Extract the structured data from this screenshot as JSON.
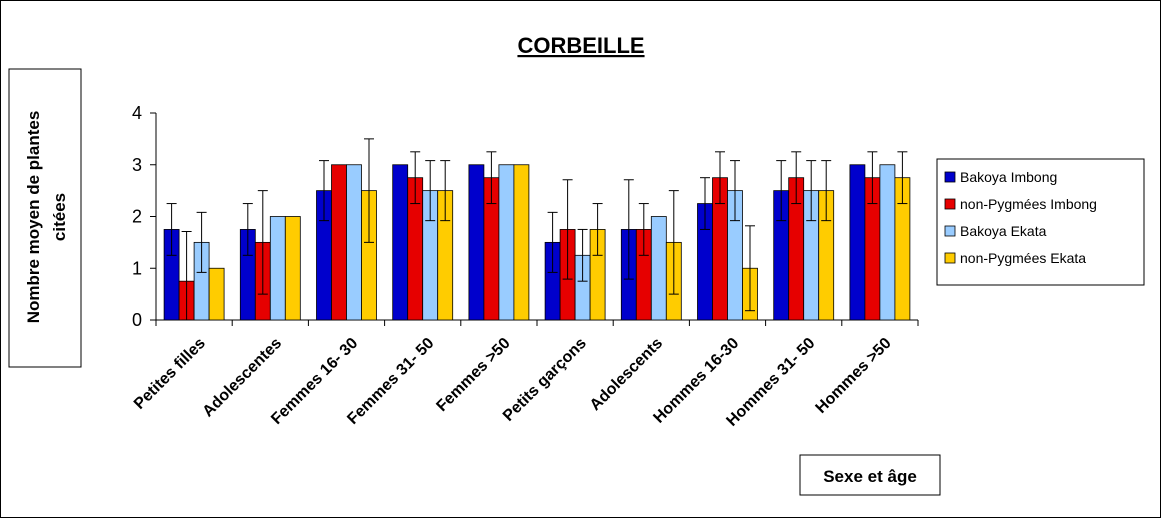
{
  "chart_data": {
    "type": "bar",
    "title": "CORBEILLE",
    "xlabel": "Sexe et âge",
    "ylabel": [
      "Nombre moyen de plantes",
      "citées"
    ],
    "ylim": [
      0,
      4
    ],
    "yticks": [
      "0",
      "1",
      "2",
      "3",
      "4"
    ],
    "grid": false,
    "legend_position": "right",
    "error_bars": true,
    "categories": [
      "Petites filles",
      "Adolescentes",
      "Femmes 16- 30",
      "Femmes 31- 50",
      "Femmes  >50",
      "Petits garçons",
      "Adolescents",
      "Hommes 16-30",
      "Hommes 31- 50",
      "Hommes >50"
    ],
    "series": [
      {
        "name": "Bakoya Imbong",
        "color": "#0000CC",
        "values": [
          1.75,
          1.75,
          2.5,
          3.0,
          3.0,
          1.5,
          1.75,
          2.25,
          2.5,
          3.0
        ],
        "errors": [
          0.5,
          0.5,
          0.58,
          0.0,
          0.0,
          0.58,
          0.96,
          0.5,
          0.58,
          0.0
        ]
      },
      {
        "name": "non-Pygmées Imbong",
        "color": "#E60000",
        "values": [
          0.75,
          1.5,
          3.0,
          2.75,
          2.75,
          1.75,
          1.75,
          2.75,
          2.75,
          2.75
        ],
        "errors": [
          0.96,
          1.0,
          0.0,
          0.5,
          0.5,
          0.96,
          0.5,
          0.5,
          0.5,
          0.5
        ]
      },
      {
        "name": "Bakoya Ekata",
        "color": "#99CCFF",
        "values": [
          1.5,
          2.0,
          3.0,
          2.5,
          3.0,
          1.25,
          2.0,
          2.5,
          2.5,
          3.0
        ],
        "errors": [
          0.58,
          0.0,
          0.0,
          0.58,
          0.0,
          0.5,
          0.0,
          0.58,
          0.58,
          0.0
        ]
      },
      {
        "name": "non-Pygmées Ekata",
        "color": "#FFCC00",
        "values": [
          1.0,
          2.0,
          2.5,
          2.5,
          3.0,
          1.75,
          1.5,
          1.0,
          2.5,
          2.75
        ],
        "errors": [
          0.0,
          0.0,
          1.0,
          0.58,
          0.0,
          0.5,
          1.0,
          0.82,
          0.58,
          0.5
        ]
      }
    ]
  }
}
